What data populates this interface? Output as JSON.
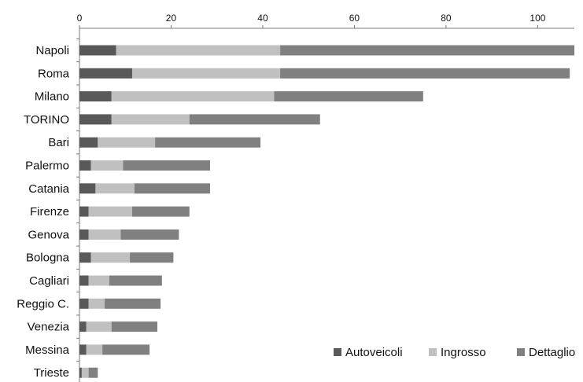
{
  "chart_data": {
    "type": "bar",
    "orientation": "horizontal",
    "stacked": true,
    "title": "",
    "xlabel": "",
    "ylabel": "",
    "xlim": [
      0,
      108
    ],
    "x_ticks": [
      0,
      20,
      40,
      60,
      80,
      100
    ],
    "x_axis_position": "top",
    "grid": false,
    "legend_position": "bottom-right",
    "categories": [
      "Napoli",
      "Roma",
      "Milano",
      "TORINO",
      "Bari",
      "Palermo",
      "Catania",
      "Firenze",
      "Genova",
      "Bologna",
      "Cagliari",
      "Reggio C.",
      "Venezia",
      "Messina",
      "Trieste"
    ],
    "series": [
      {
        "name": "Autoveicoli",
        "color": "#595959",
        "values": [
          8.0,
          11.5,
          7.0,
          7.0,
          4.0,
          2.5,
          3.5,
          2.0,
          2.0,
          2.5,
          2.0,
          2.0,
          1.5,
          1.5,
          0.5
        ]
      },
      {
        "name": "Ingrosso",
        "color": "#c0c0c0",
        "values": [
          35.8,
          32.3,
          35.5,
          17.0,
          12.5,
          7.0,
          8.5,
          9.5,
          7.0,
          8.5,
          4.5,
          3.5,
          5.5,
          3.5,
          1.5
        ]
      },
      {
        "name": "Dettaglio",
        "color": "#808080",
        "values": [
          64.2,
          63.2,
          32.5,
          28.5,
          23.0,
          19.0,
          16.5,
          12.5,
          12.7,
          9.5,
          11.5,
          12.2,
          10.0,
          10.3,
          2.0
        ]
      }
    ]
  }
}
